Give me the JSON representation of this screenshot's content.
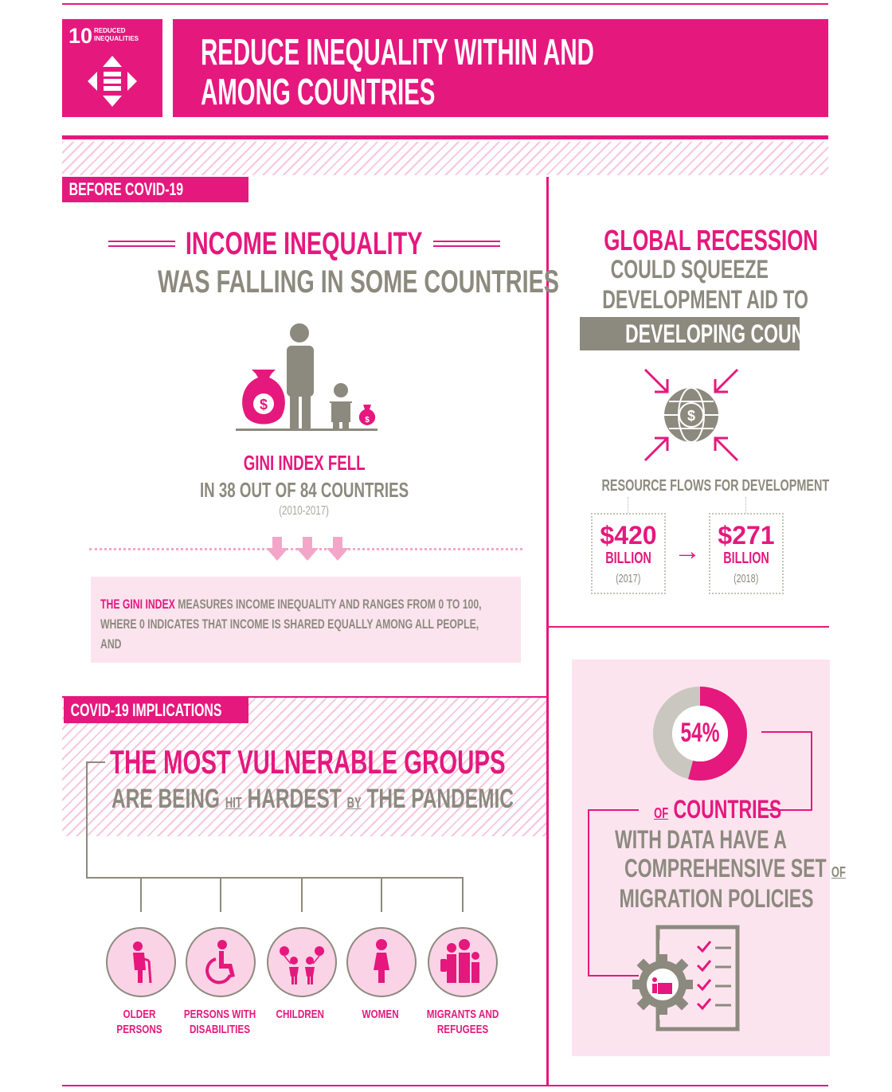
{
  "header": {
    "goal_number": "10",
    "goal_name": "REDUCED INEQUALITIES",
    "title_line1": "REDUCE INEQUALITY WITHIN AND",
    "title_line2": "AMONG COUNTRIES"
  },
  "before": {
    "tag": "BEFORE COVID-19",
    "headline_pink": "INCOME INEQUALITY",
    "headline_gray": "WAS FALLING IN SOME COUNTRIES",
    "stat_pink": "GINI INDEX FELL",
    "stat_gray": "IN 38 OUT OF 84 COUNTRIES",
    "years": "(2010-2017)",
    "note_pink": "THE GINI INDEX",
    "note_rest": " MEASURES INCOME INEQUALITY AND RANGES FROM 0 TO 100, WHERE 0 INDICATES THAT INCOME IS SHARED EQUALLY AMONG ALL PEOPLE, AND"
  },
  "recession": {
    "line1": "GLOBAL RECESSION",
    "line2": "COULD SQUEEZE",
    "line3": "DEVELOPMENT AID TO",
    "line4": "DEVELOPING COUNTRIES",
    "flows_label": "RESOURCE FLOWS FOR DEVELOPMENT",
    "flow1_amount": "$420",
    "flow1_unit": "BILLION",
    "flow1_year": "(2017)",
    "flow2_amount": "$271",
    "flow2_unit": "BILLION",
    "flow2_year": "(2018)",
    "arrow": "→"
  },
  "covid": {
    "tag": "COVID-19 IMPLICATIONS",
    "headline_pink": "THE MOST VULNERABLE GROUPS",
    "sub_1": "ARE BEING",
    "sub_2": "HIT",
    "sub_3": "HARDEST",
    "sub_4": "BY",
    "sub_5": "THE PANDEMIC",
    "groups": [
      {
        "label": "OLDER PERSONS"
      },
      {
        "label": "PERSONS WITH DISABILITIES"
      },
      {
        "label": "CHILDREN"
      },
      {
        "label": "WOMEN"
      },
      {
        "label": "MIGRANTS AND REFUGEES"
      }
    ]
  },
  "migration": {
    "percent_label": "54%",
    "percent_value": 54,
    "line1_small": "OF",
    "line1": "COUNTRIES",
    "line2": "WITH DATA HAVE A",
    "line3": "COMPREHENSIVE SET",
    "line3_small": "OF",
    "line4": "MIGRATION POLICIES"
  },
  "colors": {
    "accent": "#e5187d",
    "gray": "#8c8a7e",
    "light_pink": "#fce4ef"
  }
}
